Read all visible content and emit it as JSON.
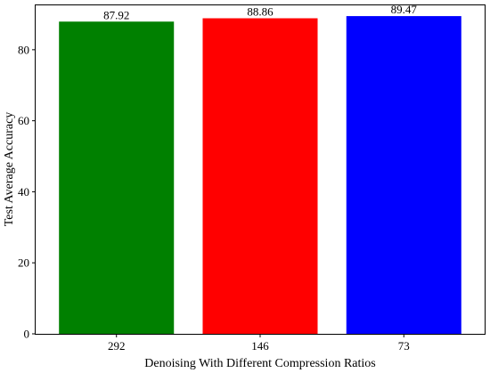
{
  "chart_data": {
    "type": "bar",
    "title": "",
    "xlabel": "Denoising With Different Compression Ratios",
    "ylabel": "Test Average Accuracy",
    "categories": [
      "292",
      "146",
      "73"
    ],
    "values": [
      87.92,
      88.86,
      89.47
    ],
    "data_labels": [
      "87.92",
      "88.86",
      "89.47"
    ],
    "bar_colors": [
      "#008000",
      "#ff0000",
      "#0000ff"
    ],
    "ylim": [
      0,
      92.5
    ],
    "yticks": [
      0,
      20,
      40,
      60,
      80
    ],
    "ytick_labels": [
      "0",
      "20",
      "40",
      "60",
      "80"
    ],
    "grid": false,
    "legend": "none"
  }
}
